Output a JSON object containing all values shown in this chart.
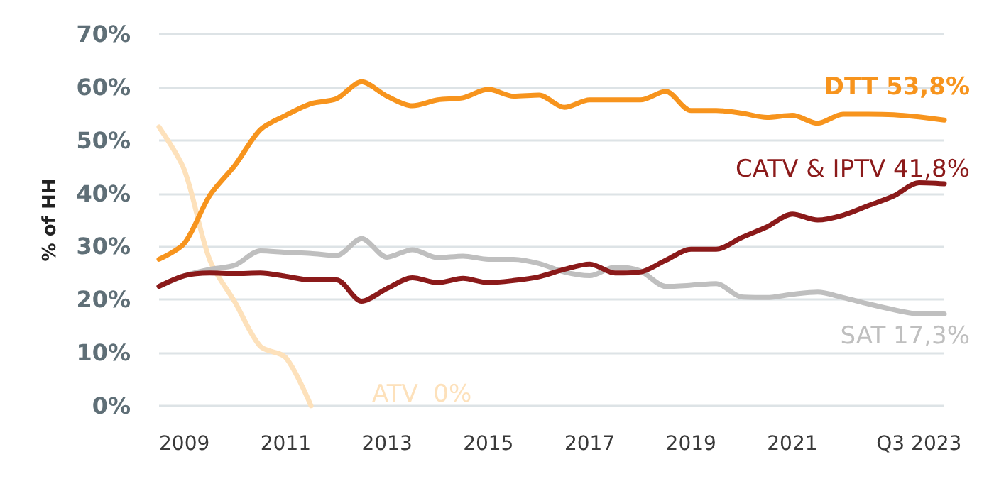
{
  "chart_data": {
    "type": "line",
    "ylabel": "% of HH",
    "categories": [
      null,
      "2009",
      null,
      null,
      null,
      "2011",
      null,
      null,
      null,
      "2013",
      null,
      null,
      null,
      "2015",
      null,
      null,
      null,
      "2017",
      null,
      null,
      null,
      "2019",
      null,
      null,
      null,
      "2021",
      null,
      null,
      null,
      null,
      "Q3 2023",
      null
    ],
    "series": [
      {
        "name": "DTT 53,8%",
        "color": "#f7941d",
        "values": [
          27.6,
          30.6,
          39.6,
          45.3,
          52,
          54.7,
          56.9,
          57.8,
          61,
          58.3,
          56.5,
          57.6,
          58,
          59.6,
          58.3,
          58.5,
          56.2,
          57.6,
          57.6,
          57.6,
          59.2,
          55.6,
          55.6,
          55.1,
          54.3,
          54.7,
          53.2,
          54.9,
          54.9,
          54.8,
          54.4,
          53.8
        ]
      },
      {
        "name": "CATV & IPTV 41,8%",
        "color": "#8b1a1a",
        "values": [
          22.5,
          24.5,
          25,
          24.9,
          25,
          24.4,
          23.7,
          23.7,
          19.7,
          22.1,
          24.1,
          23.2,
          24,
          23.2,
          23.6,
          24.3,
          25.7,
          26.7,
          25,
          25.2,
          27.4,
          29.5,
          29.5,
          31.7,
          33.7,
          36.1,
          35,
          35.9,
          37.7,
          39.5,
          42,
          41.8
        ]
      },
      {
        "name": "SAT 17,3%",
        "color": "#bfbfbf",
        "values": [
          22.5,
          24.5,
          25.7,
          26.5,
          29.2,
          28.9,
          28.7,
          28.3,
          31.5,
          28,
          29.4,
          27.9,
          28.2,
          27.6,
          27.6,
          26.8,
          25.2,
          24.5,
          26.1,
          25.4,
          22.5,
          22.7,
          23,
          20.5,
          20.4,
          21,
          21.4,
          20.4,
          19.2,
          18.1,
          17.3,
          17.3
        ]
      },
      {
        "name": "ATV  0%",
        "color": "#fde1bb",
        "values": [
          52.5,
          44.4,
          27.5,
          19.5,
          11.2,
          9.1,
          0,
          null,
          null,
          null,
          null,
          null,
          null,
          null,
          null,
          null,
          null,
          null,
          null,
          null,
          null,
          null,
          null,
          null,
          null,
          null,
          null,
          null,
          null,
          null,
          null,
          null
        ]
      }
    ],
    "ylim": [
      0,
      70
    ],
    "yticks": [
      {
        "value": 0,
        "label": "0%"
      },
      {
        "value": 10,
        "label": "10%"
      },
      {
        "value": 20,
        "label": "20%"
      },
      {
        "value": 30,
        "label": "30%"
      },
      {
        "value": 40,
        "label": "40%"
      },
      {
        "value": 50,
        "label": "50%"
      },
      {
        "value": 60,
        "label": "60%"
      },
      {
        "value": 70,
        "label": "70%"
      }
    ],
    "grid": "y",
    "legend": false,
    "marker": "none",
    "line_style": "solid"
  }
}
